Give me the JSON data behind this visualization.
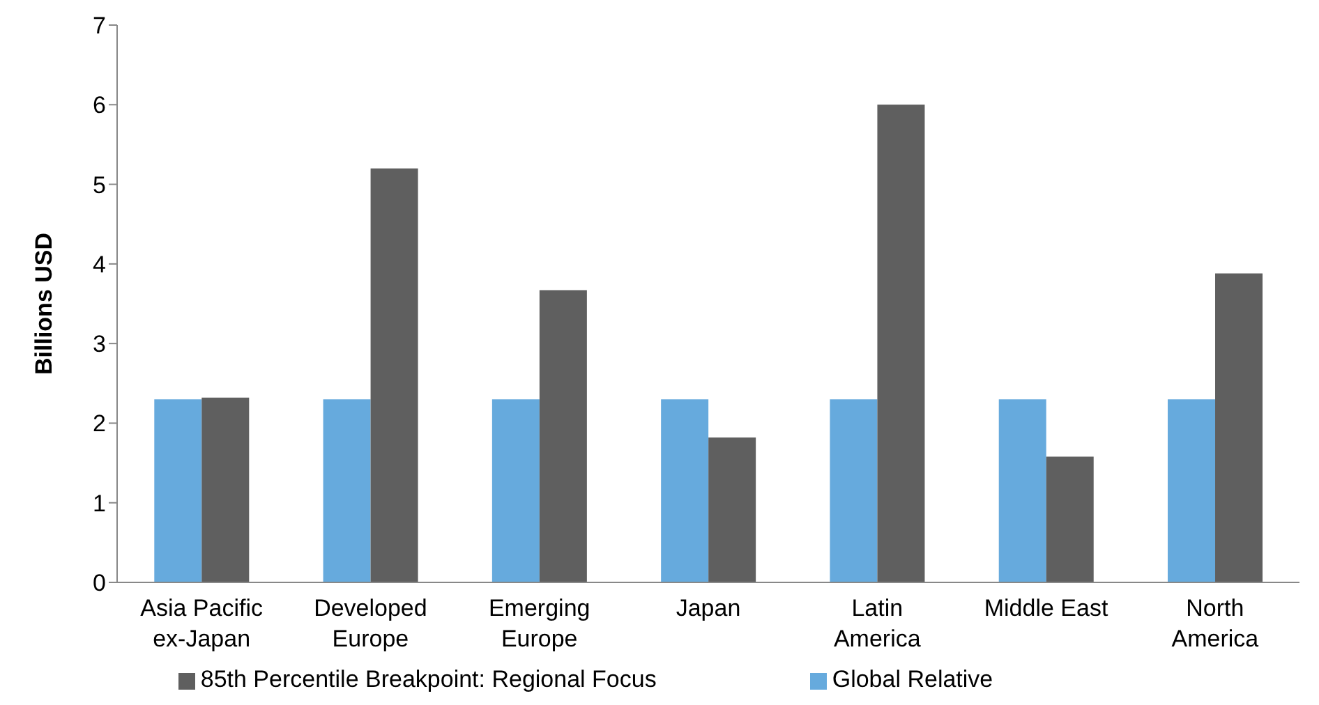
{
  "chart_data": {
    "type": "bar",
    "ylabel": "Billions USD",
    "categories": [
      "Asia Pacific ex-Japan",
      "Developed Europe",
      "Emerging Europe",
      "Japan",
      "Latin America",
      "Middle East",
      "North America"
    ],
    "series": [
      {
        "name": "Global Relative",
        "color": "#66aadd",
        "values": [
          2.3,
          2.3,
          2.3,
          2.3,
          2.3,
          2.3,
          2.3
        ]
      },
      {
        "name": "85th Percentile Breakpoint: Regional Focus",
        "color": "#5f5f5f",
        "values": [
          2.32,
          5.2,
          3.67,
          1.82,
          6.0,
          1.58,
          3.88
        ]
      }
    ],
    "ylim": [
      0,
      7
    ],
    "yticks": [
      0,
      1,
      2,
      3,
      4,
      5,
      6,
      7
    ],
    "legend": "bottom"
  }
}
